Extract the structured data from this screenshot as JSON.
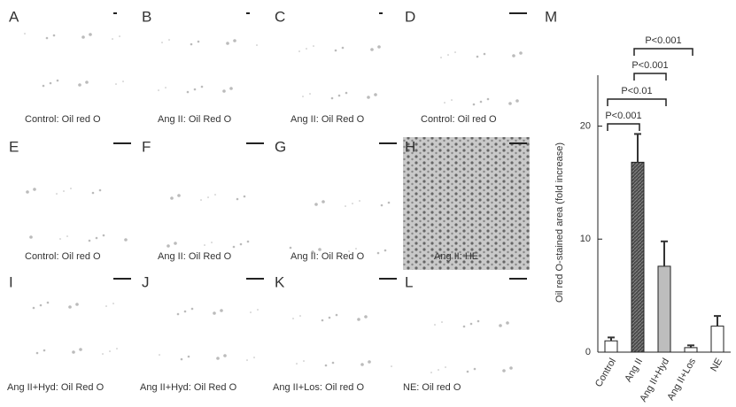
{
  "panels": [
    {
      "label": "A",
      "caption": "Control: Oil red O"
    },
    {
      "label": "B",
      "caption": "Ang II: Oil Red O"
    },
    {
      "label": "C",
      "caption": "Ang II: Oil Red O"
    },
    {
      "label": "D",
      "caption": "Control: Oil red O"
    },
    {
      "label": "E",
      "caption": "Control: Oil red O"
    },
    {
      "label": "F",
      "caption": "Ang II: Oil Red O"
    },
    {
      "label": "G",
      "caption": "Ang II: Oil Red O"
    },
    {
      "label": "H",
      "caption": "Ang II: HE"
    },
    {
      "label": "I",
      "caption": "Ang II+Hyd: Oil Red O"
    },
    {
      "label": "J",
      "caption": "Ang II+Hyd: Oil Red O"
    },
    {
      "label": "K",
      "caption": "Ang II+Los: Oil red O"
    },
    {
      "label": "L",
      "caption": "NE: Oil red O"
    }
  ],
  "chart_data": {
    "type": "bar",
    "panel_label": "M",
    "ylabel": "Oil red O-stained area (fold increase)",
    "categories": [
      "Control",
      "Ang II",
      "Ang II+Hyd",
      "Ang II+Los",
      "NE"
    ],
    "values": [
      1.0,
      16.8,
      7.6,
      0.4,
      2.3
    ],
    "errors": [
      0.3,
      2.5,
      2.2,
      0.2,
      0.9
    ],
    "colors": [
      "#ffffff",
      "#4a4a4a",
      "#bdbdbd",
      "#ffffff",
      "#ffffff"
    ],
    "ylim": [
      0,
      24.5
    ],
    "yticks": [
      0,
      10,
      20
    ],
    "annotations": [
      "P<0.001",
      "P<0.01",
      "P<0.001",
      "P<0.001"
    ]
  }
}
